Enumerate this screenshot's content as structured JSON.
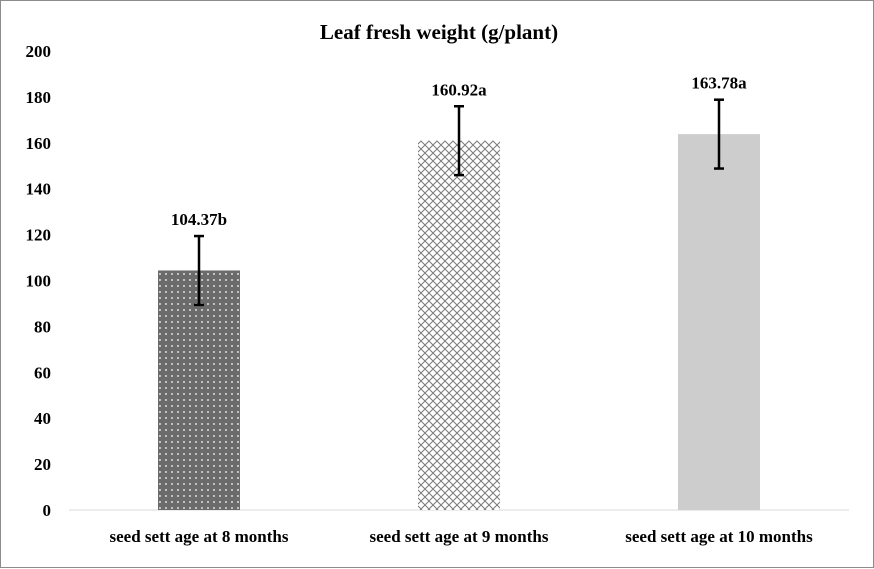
{
  "chart_data": {
    "type": "bar",
    "title": "Leaf fresh weight (g/plant)",
    "xlabel": "",
    "ylabel": "",
    "ylim": [
      0,
      200
    ],
    "yticks": [
      0,
      20,
      40,
      60,
      80,
      100,
      120,
      140,
      160,
      180,
      200
    ],
    "grid": false,
    "legend": "none",
    "categories": [
      "seed sett age at 8 months",
      "seed sett age at 9 months",
      "seed sett age at 10 months"
    ],
    "values": [
      104.37,
      160.92,
      163.78
    ],
    "error": [
      15,
      15,
      15
    ],
    "data_labels": [
      "104.37b",
      "160.92a",
      "163.78a"
    ],
    "bar_styles": [
      "dotted-dark",
      "crosshatch",
      "solid-light-gray"
    ],
    "colors": {
      "dark_fill": "#6b6b6b",
      "crosshatch_line": "#7a7a7a",
      "light_fill": "#cdcdcd",
      "axis": "#d9d9d9",
      "error_bar": "#000000"
    }
  }
}
